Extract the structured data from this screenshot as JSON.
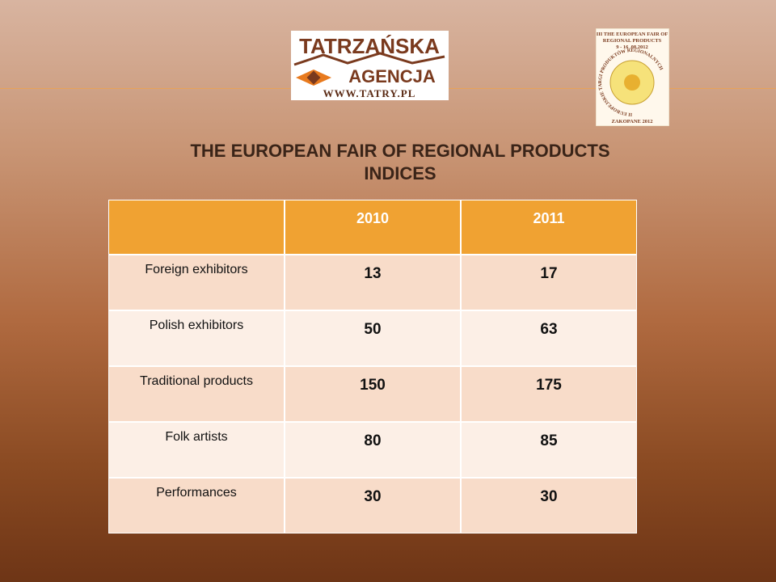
{
  "logos": {
    "agency": {
      "name": "TATRZAŃSKA",
      "subname": "AGENCJA",
      "url": "WWW.TATRY.PL"
    },
    "fair": {
      "title_line1": "III THE EUROPEAN FAIR OF",
      "title_line2": "REGIONAL PRODUCTS",
      "dates": "9 - 16 .08.2012",
      "ring": "II EUROPEJSKIE TARGI PRODUKTÓW REGIONALNYCH",
      "footer": "ZAKOPANE 2012"
    }
  },
  "title": {
    "line1": "THE EUROPEAN FAIR OF REGIONAL PRODUCTS",
    "line2": "INDICES"
  },
  "table": {
    "columns": [
      "2010",
      "2011"
    ],
    "rows": [
      [
        "Foreign exhibitors",
        13,
        17
      ],
      [
        "Polish exhibitors",
        50,
        63
      ],
      [
        "Traditional products",
        150,
        175
      ],
      [
        "Folk artists",
        80,
        85
      ],
      [
        "Performances",
        30,
        30
      ]
    ]
  }
}
